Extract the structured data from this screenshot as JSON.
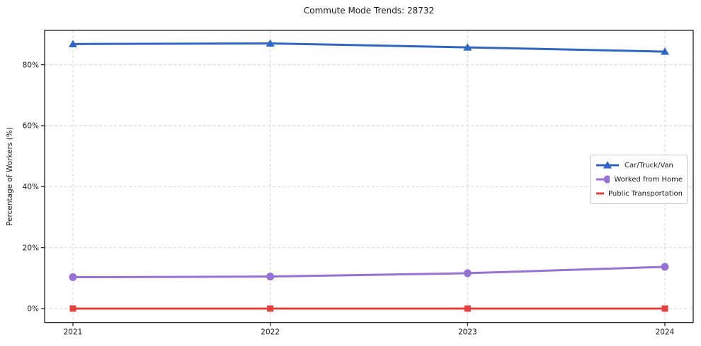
{
  "chart_data": {
    "type": "line",
    "title": "Commute Mode Trends: 28732",
    "xlabel": "",
    "ylabel": "Percentage of Workers (%)",
    "x": [
      "2021",
      "2022",
      "2023",
      "2024"
    ],
    "series": [
      {
        "name": "Car/Truck/Van",
        "color": "#2f66c4",
        "marker": "triangle",
        "values": [
          86.8,
          87.0,
          85.7,
          84.3
        ]
      },
      {
        "name": "Worked from Home",
        "color": "#9671d6",
        "marker": "circle",
        "values": [
          10.3,
          10.5,
          11.6,
          13.7
        ]
      },
      {
        "name": "Public Transportation",
        "color": "#e3413d",
        "marker": "square",
        "values": [
          0.0,
          0.0,
          0.0,
          0.0
        ]
      }
    ],
    "y_ticks": [
      "0%",
      "20%",
      "40%",
      "60%",
      "80%"
    ],
    "y_tick_values": [
      0,
      20,
      40,
      60,
      80
    ],
    "ylim": [
      -4.6,
      91.3
    ],
    "grid": true,
    "grid_style": "dashed",
    "grid_color": "#d0d0d0",
    "axis_color": "#1a1a1a",
    "legend_position": "center right"
  }
}
